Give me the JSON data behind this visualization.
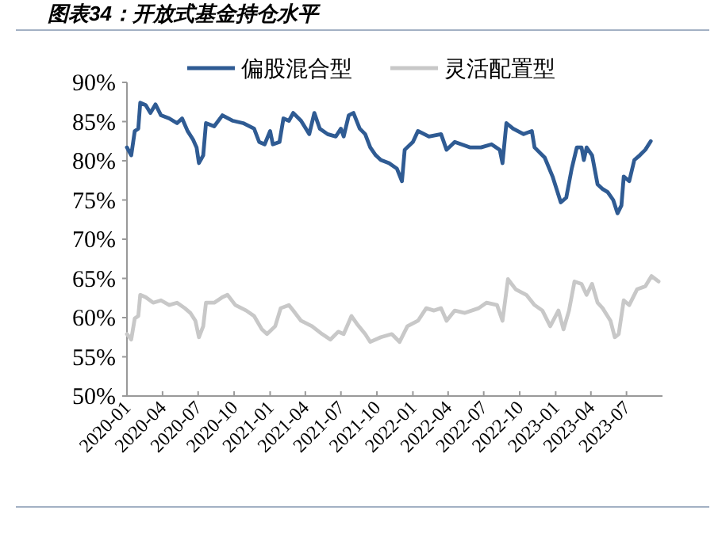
{
  "chart_data": {
    "type": "line",
    "title": "图表34：开放式基金持仓水平",
    "xlim": [
      "2020-01-01",
      "2023-10-01"
    ],
    "xticks": [
      "2020-01",
      "2020-04",
      "2020-07",
      "2020-10",
      "2021-01",
      "2021-04",
      "2021-07",
      "2021-10",
      "2022-01",
      "2022-04",
      "2022-07",
      "2022-10",
      "2023-01",
      "2023-04",
      "2023-07"
    ],
    "ylim": [
      50,
      90
    ],
    "yticks": [
      {
        "value": 50,
        "label": "50%"
      },
      {
        "value": 55,
        "label": "55%"
      },
      {
        "value": 60,
        "label": "60%"
      },
      {
        "value": 65,
        "label": "65%"
      },
      {
        "value": 70,
        "label": "70%"
      },
      {
        "value": 75,
        "label": "75%"
      },
      {
        "value": 80,
        "label": "80%"
      },
      {
        "value": 85,
        "label": "85%"
      },
      {
        "value": 90,
        "label": "90%"
      }
    ],
    "legend": "top",
    "series": [
      {
        "name": "偏股混合型",
        "color": "#2f5b93",
        "x": [
          "2020-01-01",
          "2020-01-12",
          "2020-01-21",
          "2020-01-30",
          "2020-02-04",
          "2020-02-18",
          "2020-03-01",
          "2020-03-14",
          "2020-03-28",
          "2020-04-18",
          "2020-05-08",
          "2020-05-21",
          "2020-06-04",
          "2020-06-18",
          "2020-06-27",
          "2020-07-03",
          "2020-07-14",
          "2020-07-21",
          "2020-08-11",
          "2020-09-01",
          "2020-09-28",
          "2020-10-24",
          "2020-11-21",
          "2020-12-04",
          "2020-12-18",
          "2021-01-01",
          "2021-01-08",
          "2021-01-25",
          "2021-02-04",
          "2021-02-18",
          "2021-03-01",
          "2021-03-21",
          "2021-04-11",
          "2021-04-24",
          "2021-05-08",
          "2021-05-28",
          "2021-06-18",
          "2021-07-01",
          "2021-07-08",
          "2021-07-21",
          "2021-08-02",
          "2021-08-18",
          "2021-09-01",
          "2021-09-14",
          "2021-09-28",
          "2021-10-11",
          "2021-11-01",
          "2021-11-21",
          "2021-12-04",
          "2021-12-11",
          "2022-01-01",
          "2022-01-14",
          "2022-02-11",
          "2022-03-14",
          "2022-03-28",
          "2022-04-18",
          "2022-05-28",
          "2022-06-24",
          "2022-07-21",
          "2022-08-11",
          "2022-08-18",
          "2022-08-28",
          "2022-09-14",
          "2022-10-11",
          "2022-11-01",
          "2022-11-08",
          "2022-12-04",
          "2022-12-24",
          "2023-01-14",
          "2023-01-28",
          "2023-02-11",
          "2023-02-24",
          "2023-03-08",
          "2023-03-14",
          "2023-03-21",
          "2023-04-04",
          "2023-04-18",
          "2023-05-01",
          "2023-05-14",
          "2023-05-28",
          "2023-06-08",
          "2023-06-18",
          "2023-06-24",
          "2023-07-08",
          "2023-07-21",
          "2023-08-04",
          "2023-08-18",
          "2023-09-01"
        ],
        "values": [
          81.7,
          80.7,
          83.8,
          84.1,
          87.4,
          87.1,
          86.1,
          87.2,
          85.8,
          85.4,
          84.8,
          85.4,
          83.8,
          82.7,
          81.7,
          79.7,
          80.7,
          84.8,
          84.4,
          85.8,
          85.1,
          84.8,
          84.1,
          82.4,
          82.1,
          83.8,
          82.1,
          82.4,
          85.4,
          85.1,
          86.1,
          85.1,
          83.4,
          86.1,
          84.1,
          83.4,
          83.1,
          84.1,
          83.1,
          85.8,
          86.1,
          84.1,
          83.4,
          81.7,
          80.7,
          80.1,
          79.7,
          79.0,
          77.4,
          81.4,
          82.4,
          83.8,
          83.1,
          83.4,
          81.4,
          82.4,
          81.7,
          81.7,
          82.1,
          81.4,
          79.7,
          84.8,
          84.1,
          83.4,
          83.8,
          81.7,
          80.4,
          78.0,
          74.7,
          75.3,
          79.0,
          81.7,
          81.7,
          80.1,
          81.7,
          80.7,
          77.0,
          76.4,
          76.0,
          75.0,
          73.3,
          74.3,
          78.0,
          77.4,
          80.1,
          80.7,
          81.4,
          82.5
        ]
      },
      {
        "name": "灵活配置型",
        "color": "#c8c8c8",
        "x": [
          "2020-01-01",
          "2020-01-12",
          "2020-01-21",
          "2020-01-30",
          "2020-02-04",
          "2020-02-18",
          "2020-03-08",
          "2020-03-28",
          "2020-04-18",
          "2020-05-08",
          "2020-05-28",
          "2020-06-11",
          "2020-06-24",
          "2020-07-03",
          "2020-07-14",
          "2020-07-21",
          "2020-08-11",
          "2020-09-01",
          "2020-09-14",
          "2020-10-04",
          "2020-11-01",
          "2020-11-21",
          "2020-12-11",
          "2020-12-24",
          "2021-01-14",
          "2021-01-28",
          "2021-02-18",
          "2021-03-01",
          "2021-03-21",
          "2021-04-18",
          "2021-05-14",
          "2021-06-04",
          "2021-06-24",
          "2021-07-08",
          "2021-07-28",
          "2021-08-11",
          "2021-09-01",
          "2021-09-14",
          "2021-10-11",
          "2021-11-08",
          "2021-11-28",
          "2021-12-18",
          "2022-01-14",
          "2022-02-04",
          "2022-02-24",
          "2022-03-14",
          "2022-03-28",
          "2022-04-18",
          "2022-05-14",
          "2022-06-18",
          "2022-07-08",
          "2022-08-04",
          "2022-08-18",
          "2022-09-01",
          "2022-09-21",
          "2022-10-18",
          "2022-11-08",
          "2022-11-28",
          "2022-12-18",
          "2023-01-08",
          "2023-01-21",
          "2023-02-04",
          "2023-02-18",
          "2023-03-08",
          "2023-03-21",
          "2023-04-04",
          "2023-04-18",
          "2023-05-01",
          "2023-05-21",
          "2023-06-01",
          "2023-06-11",
          "2023-06-24",
          "2023-07-08",
          "2023-07-28",
          "2023-08-18",
          "2023-09-03",
          "2023-09-21"
        ],
        "values": [
          57.9,
          57.2,
          59.9,
          60.2,
          62.9,
          62.6,
          61.9,
          62.2,
          61.6,
          61.9,
          61.2,
          60.6,
          59.6,
          57.5,
          58.9,
          61.9,
          61.9,
          62.6,
          62.9,
          61.6,
          60.9,
          60.2,
          58.5,
          57.9,
          58.9,
          61.2,
          61.6,
          60.9,
          59.6,
          58.9,
          57.9,
          57.2,
          58.2,
          57.9,
          60.2,
          59.2,
          57.9,
          56.9,
          57.5,
          57.9,
          56.9,
          58.9,
          59.6,
          61.2,
          60.9,
          61.2,
          59.6,
          60.9,
          60.6,
          61.2,
          61.9,
          61.6,
          59.6,
          64.9,
          63.6,
          62.9,
          61.6,
          60.9,
          58.9,
          60.9,
          58.5,
          60.9,
          64.6,
          64.3,
          62.9,
          64.3,
          61.9,
          61.2,
          59.6,
          57.5,
          57.9,
          62.2,
          61.6,
          63.6,
          64.0,
          65.3,
          64.6
        ]
      }
    ]
  }
}
